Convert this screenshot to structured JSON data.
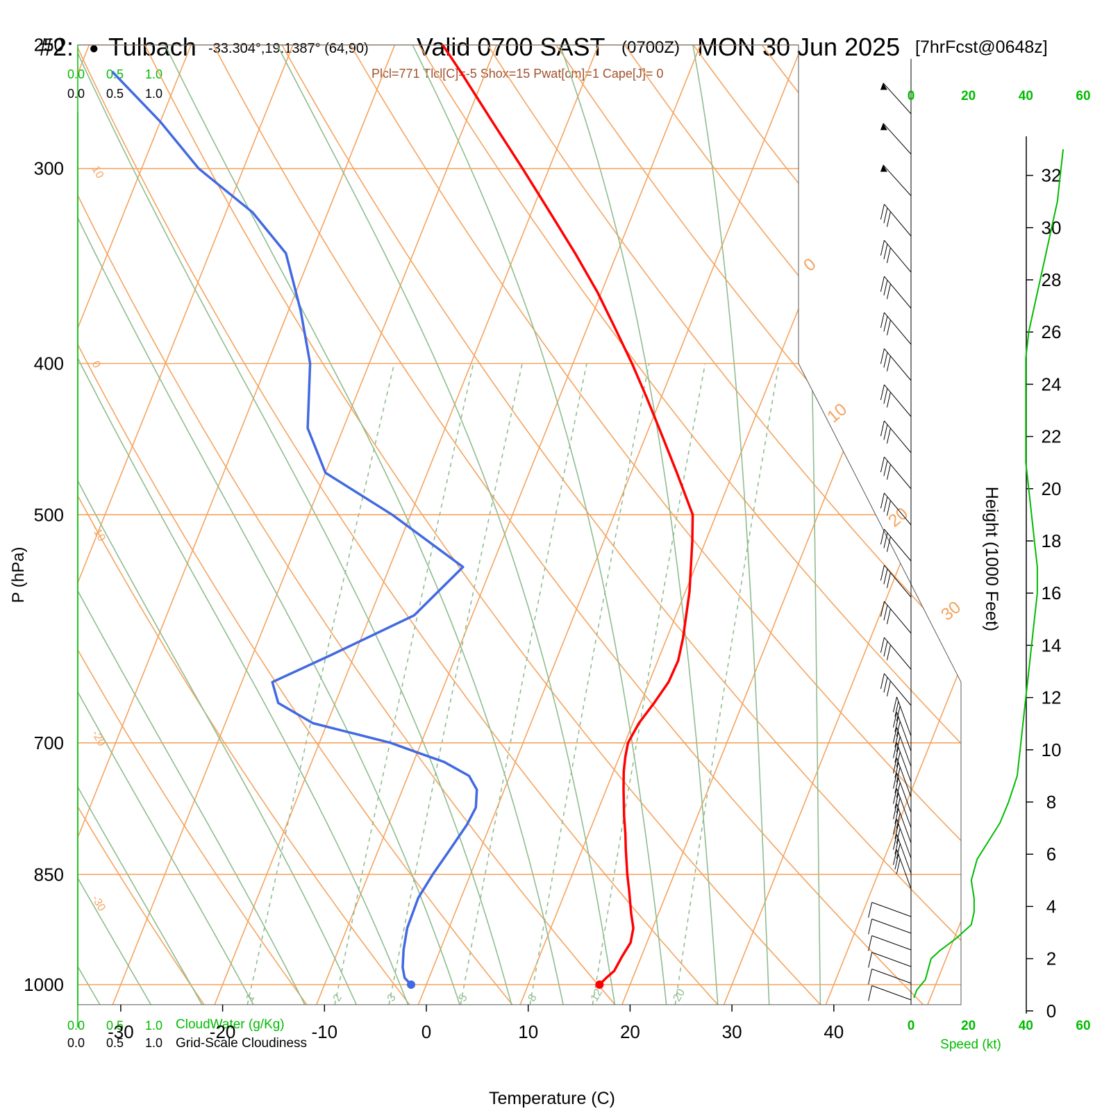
{
  "header": {
    "station_id": "#2:",
    "station_bullet": "●",
    "station_name": "Tulbach",
    "coords": "-33.304°,19.1387° (64,90)",
    "valid": "Valid 0700 SAST",
    "zulu": "(0700Z)",
    "date": "MON 30 Jun 2025",
    "forecast": "[7hrFcst@0648z]",
    "indices": "Plcl=771 Tlcl[C]=-5 Shox=15 Pwat[cm]=1 Cape[J]= 0"
  },
  "colors": {
    "temperature": "#ff0000",
    "dewpoint": "#4169e1",
    "isotherm": "#f4a460",
    "dry_adiabat": "#8fbc8f",
    "mixing_ratio": "#8fbc8f",
    "speed": "#00bb00",
    "cloud": "#00bb00",
    "index_text": "#a0522d"
  },
  "cloud_axis": {
    "cloudwater_ticks": [
      "0.0",
      "0.5",
      "1.0"
    ],
    "cloudiness_ticks": [
      "0.0",
      "0.5",
      "1.0"
    ],
    "cloudwater_label": "CloudWater (g/Kg)",
    "cloudiness_label": "Grid-Scale Cloudiness"
  },
  "speed_axis": {
    "ticks": [
      "0",
      "20",
      "40",
      "60"
    ],
    "label": "Speed (kt)"
  },
  "chart_data": {
    "type": "line",
    "subtype": "skew-T log-P sounding",
    "xlabel": "Temperature (C)",
    "ylabel": "P (hPa)",
    "y2label": "Height (1000 Feet)",
    "x_ticks": [
      -30,
      -20,
      -10,
      0,
      10,
      20,
      30,
      40
    ],
    "p_ticks": [
      250,
      300,
      400,
      500,
      700,
      850,
      1000
    ],
    "height_ticks": [
      0,
      2,
      4,
      6,
      8,
      10,
      12,
      14,
      16,
      18,
      20,
      22,
      24,
      26,
      28,
      30,
      32
    ],
    "xlim": [
      -33,
      36
    ],
    "plim": [
      1030,
      250
    ],
    "isotherm_labels": [
      "10",
      "0",
      "-10",
      "-20",
      "-30",
      "0",
      "10",
      "20",
      "30"
    ],
    "mixing_ratio_labels": [
      "1",
      "2",
      "3",
      "5",
      "8",
      "12",
      "20"
    ],
    "series": [
      {
        "key": "temperature",
        "points": [
          [
            1000,
            17.0
          ],
          [
            990,
            17.4
          ],
          [
            980,
            17.9
          ],
          [
            960,
            18.1
          ],
          [
            940,
            18.4
          ],
          [
            920,
            18.1
          ],
          [
            900,
            17.3
          ],
          [
            870,
            16.2
          ],
          [
            850,
            15.4
          ],
          [
            820,
            14.3
          ],
          [
            800,
            13.6
          ],
          [
            780,
            12.8
          ],
          [
            750,
            11.7
          ],
          [
            730,
            11.0
          ],
          [
            715,
            10.6
          ],
          [
            700,
            10.3
          ],
          [
            680,
            10.6
          ],
          [
            660,
            11.3
          ],
          [
            640,
            11.9
          ],
          [
            620,
            12.0
          ],
          [
            600,
            11.6
          ],
          [
            560,
            10.4
          ],
          [
            520,
            8.7
          ],
          [
            500,
            7.7
          ],
          [
            470,
            4.5
          ],
          [
            440,
            1.0
          ],
          [
            420,
            -1.5
          ],
          [
            400,
            -4.2
          ],
          [
            380,
            -7.2
          ],
          [
            360,
            -10.4
          ],
          [
            340,
            -14.1
          ],
          [
            320,
            -18.2
          ],
          [
            300,
            -22.6
          ],
          [
            280,
            -27.4
          ],
          [
            260,
            -32.5
          ],
          [
            250,
            -35.3
          ]
        ]
      },
      {
        "key": "dewpoint",
        "points": [
          [
            1000,
            -1.5
          ],
          [
            990,
            -2.4
          ],
          [
            975,
            -3.0
          ],
          [
            950,
            -3.6
          ],
          [
            920,
            -4.1
          ],
          [
            880,
            -4.2
          ],
          [
            850,
            -3.7
          ],
          [
            820,
            -3.0
          ],
          [
            790,
            -2.3
          ],
          [
            770,
            -2.1
          ],
          [
            750,
            -2.7
          ],
          [
            735,
            -4.0
          ],
          [
            720,
            -7.0
          ],
          [
            710,
            -10.0
          ],
          [
            700,
            -13.0
          ],
          [
            680,
            -21.4
          ],
          [
            660,
            -25.6
          ],
          [
            640,
            -27.0
          ],
          [
            615,
            -22.3
          ],
          [
            580,
            -15.7
          ],
          [
            540,
            -12.8
          ],
          [
            500,
            -21.8
          ],
          [
            470,
            -30.0
          ],
          [
            440,
            -33.5
          ],
          [
            400,
            -35.8
          ],
          [
            370,
            -38.8
          ],
          [
            340,
            -42.5
          ],
          [
            320,
            -47.4
          ],
          [
            300,
            -54.4
          ],
          [
            280,
            -60.0
          ],
          [
            260,
            -66.7
          ]
        ]
      }
    ],
    "speed_profile": {
      "height_kft": [
        0.5,
        0.8,
        1.2,
        1.6,
        2.0,
        2.3,
        2.8,
        3.3,
        3.8,
        4.3,
        5.0,
        5.8,
        6.5,
        7.2,
        8.0,
        9.0,
        10.0,
        11.0,
        12.0,
        13.0,
        14.0,
        15.0,
        16.0,
        17.0,
        18.0,
        19.0,
        20.0,
        21.0,
        22.0,
        23.0,
        24.0,
        25.0,
        26.0,
        27.0,
        28.0,
        29.0,
        30.0,
        31.0,
        32.0,
        33.0
      ],
      "speed_kt": [
        1,
        2,
        5,
        6,
        7,
        10,
        16,
        21,
        22,
        22,
        21,
        23,
        27,
        31,
        34,
        37,
        38,
        39,
        40,
        41,
        42,
        43,
        44,
        44,
        43,
        42,
        41,
        40,
        40,
        40,
        40,
        40,
        41,
        43,
        45,
        47,
        49,
        51,
        52,
        53
      ]
    }
  }
}
